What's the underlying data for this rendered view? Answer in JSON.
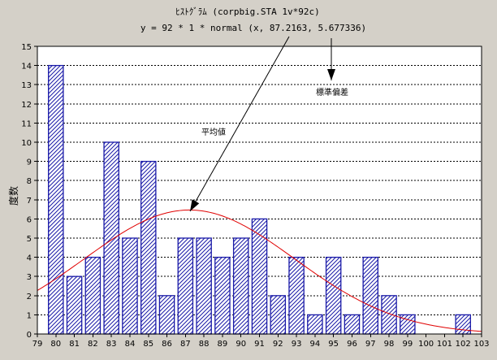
{
  "chart_data": {
    "type": "bar",
    "title": "ﾋｽﾄｸﾞﾗﾑ (corpbig.STA 1v*92c)",
    "subtitle": "y = 92 * 1 * normal (x, 87.2163, 5.677336)",
    "xlabel": "",
    "ylabel": "度数",
    "xlim": [
      79,
      103
    ],
    "ylim": [
      0,
      15
    ],
    "x_ticks": [
      79,
      80,
      81,
      82,
      83,
      84,
      85,
      86,
      87,
      88,
      89,
      90,
      91,
      92,
      93,
      94,
      95,
      96,
      97,
      98,
      99,
      100,
      101,
      102,
      103
    ],
    "y_ticks": [
      0,
      1,
      2,
      3,
      4,
      5,
      6,
      7,
      8,
      9,
      10,
      11,
      12,
      13,
      14,
      15
    ],
    "grid": true,
    "histogram": {
      "x": [
        80,
        81,
        82,
        83,
        84,
        85,
        86,
        87,
        88,
        89,
        90,
        91,
        92,
        93,
        94,
        95,
        96,
        97,
        98,
        99,
        100,
        101,
        102
      ],
      "values": [
        14,
        3,
        4,
        10,
        5,
        9,
        2,
        5,
        5,
        4,
        5,
        6,
        2,
        4,
        1,
        4,
        1,
        4,
        2,
        1,
        0,
        0,
        1
      ],
      "fill": "#1a1aa8"
    },
    "normal_curve": {
      "n": 92,
      "bin_width": 1,
      "mean": 87.2163,
      "sd": 5.677336,
      "color": "#e00000"
    },
    "annotations": [
      {
        "text": "平均値",
        "points_to": "mean"
      },
      {
        "text": "標準偏差",
        "points_to": "sd"
      }
    ]
  }
}
